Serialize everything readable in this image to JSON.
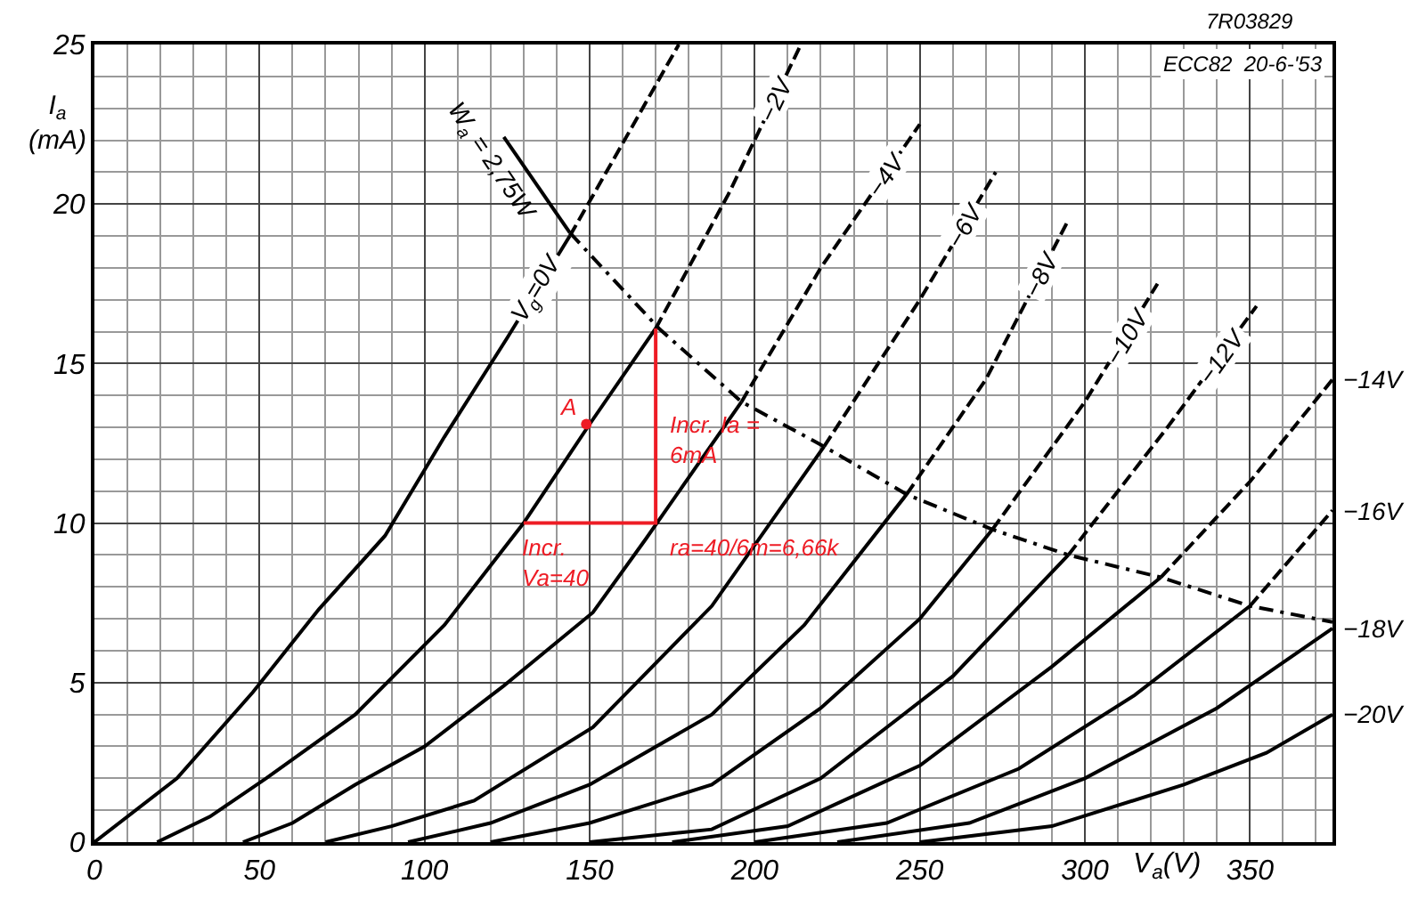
{
  "chart_data": {
    "type": "line",
    "xlabel": "V$_{a}$(V)",
    "ylabel": "I$_{a}$\n(mA)",
    "xlim": [
      0,
      375
    ],
    "xticks": [
      0,
      50,
      100,
      150,
      200,
      250,
      300,
      350
    ],
    "ylim": [
      0,
      25
    ],
    "yticks": [
      0,
      5,
      10,
      15,
      20,
      25
    ],
    "grid": true,
    "legend": false,
    "series": [
      {
        "name": "V$_{g}$=0V",
        "color": "#000000",
        "line_style": "solid",
        "x": [
          0,
          25,
          48,
          68,
          88,
          106,
          125,
          144
        ],
        "values": [
          0,
          2.0,
          4.7,
          7.3,
          9.6,
          12.7,
          15.8,
          19.0
        ]
      },
      {
        "color": "#000000",
        "line_style": "dashed",
        "x": [
          144,
          160,
          177
        ],
        "values": [
          19.0,
          21.9,
          25
        ]
      },
      {
        "color": "#000000",
        "line_style": "solid",
        "x": [
          19,
          35,
          52,
          79,
          106,
          130,
          150,
          170
        ],
        "values": [
          0,
          0.8,
          2.0,
          4.0,
          6.8,
          10.0,
          13.1,
          16.1
        ]
      },
      {
        "name": "−2V",
        "color": "#000000",
        "line_style": "dashed",
        "x": [
          170,
          192,
          214
        ],
        "values": [
          16.1,
          20.3,
          25
        ]
      },
      {
        "color": "#000000",
        "line_style": "solid",
        "x": [
          45,
          60,
          79,
          100,
          124,
          151,
          167,
          196
        ],
        "values": [
          0,
          0.6,
          1.8,
          3.0,
          4.9,
          7.2,
          9.5,
          13.8
        ]
      },
      {
        "name": "−4V",
        "color": "#000000",
        "line_style": "dashed",
        "x": [
          196,
          220,
          250
        ],
        "values": [
          13.8,
          18.0,
          22.5
        ]
      },
      {
        "color": "#000000",
        "line_style": "solid",
        "x": [
          70,
          90,
          115,
          151,
          187,
          221
        ],
        "values": [
          0,
          0.5,
          1.3,
          3.6,
          7.4,
          12.4
        ]
      },
      {
        "name": "−6V",
        "color": "#000000",
        "line_style": "dashed",
        "x": [
          221,
          250,
          273
        ],
        "values": [
          12.4,
          17.0,
          21.0
        ]
      },
      {
        "color": "#000000",
        "line_style": "solid",
        "x": [
          95,
          120,
          150,
          187,
          215,
          246
        ],
        "values": [
          0,
          0.6,
          1.8,
          4.0,
          6.8,
          10.9
        ]
      },
      {
        "name": "−8V",
        "color": "#000000",
        "line_style": "dashed",
        "x": [
          246,
          270,
          295
        ],
        "values": [
          10.9,
          14.5,
          19.5
        ]
      },
      {
        "color": "#000000",
        "line_style": "solid",
        "x": [
          120,
          150,
          187,
          220,
          250,
          272
        ],
        "values": [
          0,
          0.6,
          1.8,
          4.2,
          7.0,
          9.8
        ]
      },
      {
        "name": "−10V",
        "color": "#000000",
        "line_style": "dashed",
        "x": [
          272,
          300,
          322
        ],
        "values": [
          9.8,
          13.8,
          17.5
        ]
      },
      {
        "color": "#000000",
        "line_style": "solid",
        "x": [
          150,
          187,
          220,
          260,
          295
        ],
        "values": [
          0,
          0.4,
          2.0,
          5.2,
          9.0
        ]
      },
      {
        "name": "−12V",
        "color": "#000000",
        "line_style": "dashed",
        "x": [
          295,
          325,
          352
        ],
        "values": [
          9.0,
          13.0,
          16.8
        ]
      },
      {
        "color": "#000000",
        "line_style": "solid",
        "x": [
          175,
          210,
          250,
          290,
          323
        ],
        "values": [
          0,
          0.5,
          2.4,
          5.5,
          8.3
        ]
      },
      {
        "name": "−14V",
        "color": "#000000",
        "line_style": "dashed",
        "x": [
          323,
          350,
          375
        ],
        "values": [
          8.3,
          11.3,
          14.5
        ]
      },
      {
        "color": "#000000",
        "line_style": "solid",
        "x": [
          200,
          240,
          280,
          315,
          350
        ],
        "values": [
          0,
          0.6,
          2.3,
          4.6,
          7.4
        ]
      },
      {
        "name": "−16V",
        "color": "#000000",
        "line_style": "dashed",
        "x": [
          350,
          375
        ],
        "values": [
          7.4,
          10.4
        ]
      },
      {
        "name": "−18V",
        "color": "#000000",
        "line_style": "solid",
        "x": [
          225,
          265,
          300,
          340,
          375
        ],
        "values": [
          0,
          0.6,
          2.0,
          4.2,
          6.7
        ]
      },
      {
        "name": "−20V",
        "color": "#000000",
        "line_style": "solid",
        "x": [
          250,
          290,
          330,
          355,
          375
        ],
        "values": [
          0,
          0.5,
          1.8,
          2.8,
          4.0
        ]
      },
      {
        "name": "W$_{a}$ = 2,75W",
        "color": "#000000",
        "line_style": "solid",
        "x": [
          144,
          124
        ],
        "values": [
          19.1,
          22.1
        ]
      },
      {
        "color": "#000000",
        "line_style": "dashdot",
        "x": [
          144,
          171,
          196,
          221,
          246,
          272,
          295,
          323,
          350,
          375
        ],
        "values": [
          19.1,
          16.1,
          13.8,
          12.4,
          10.9,
          9.8,
          9.0,
          8.3,
          7.4,
          6.9
        ]
      },
      {
        "color": "#ee1c25",
        "line_style": "solid",
        "x": [
          130,
          170,
          170
        ],
        "values": [
          10.0,
          10.0,
          16.1
        ]
      },
      {
        "name": "A",
        "type": "scatter",
        "marker": "circle",
        "color": "#ee1c25",
        "x": [
          149
        ],
        "values": [
          13.1
        ]
      }
    ],
    "annotations": [
      "7R03829",
      "ECC82  20-6-'53",
      "Incr. Ia =\n6mA",
      "Incr.\nVa=40",
      "ra=40/6m=6,66k"
    ]
  }
}
